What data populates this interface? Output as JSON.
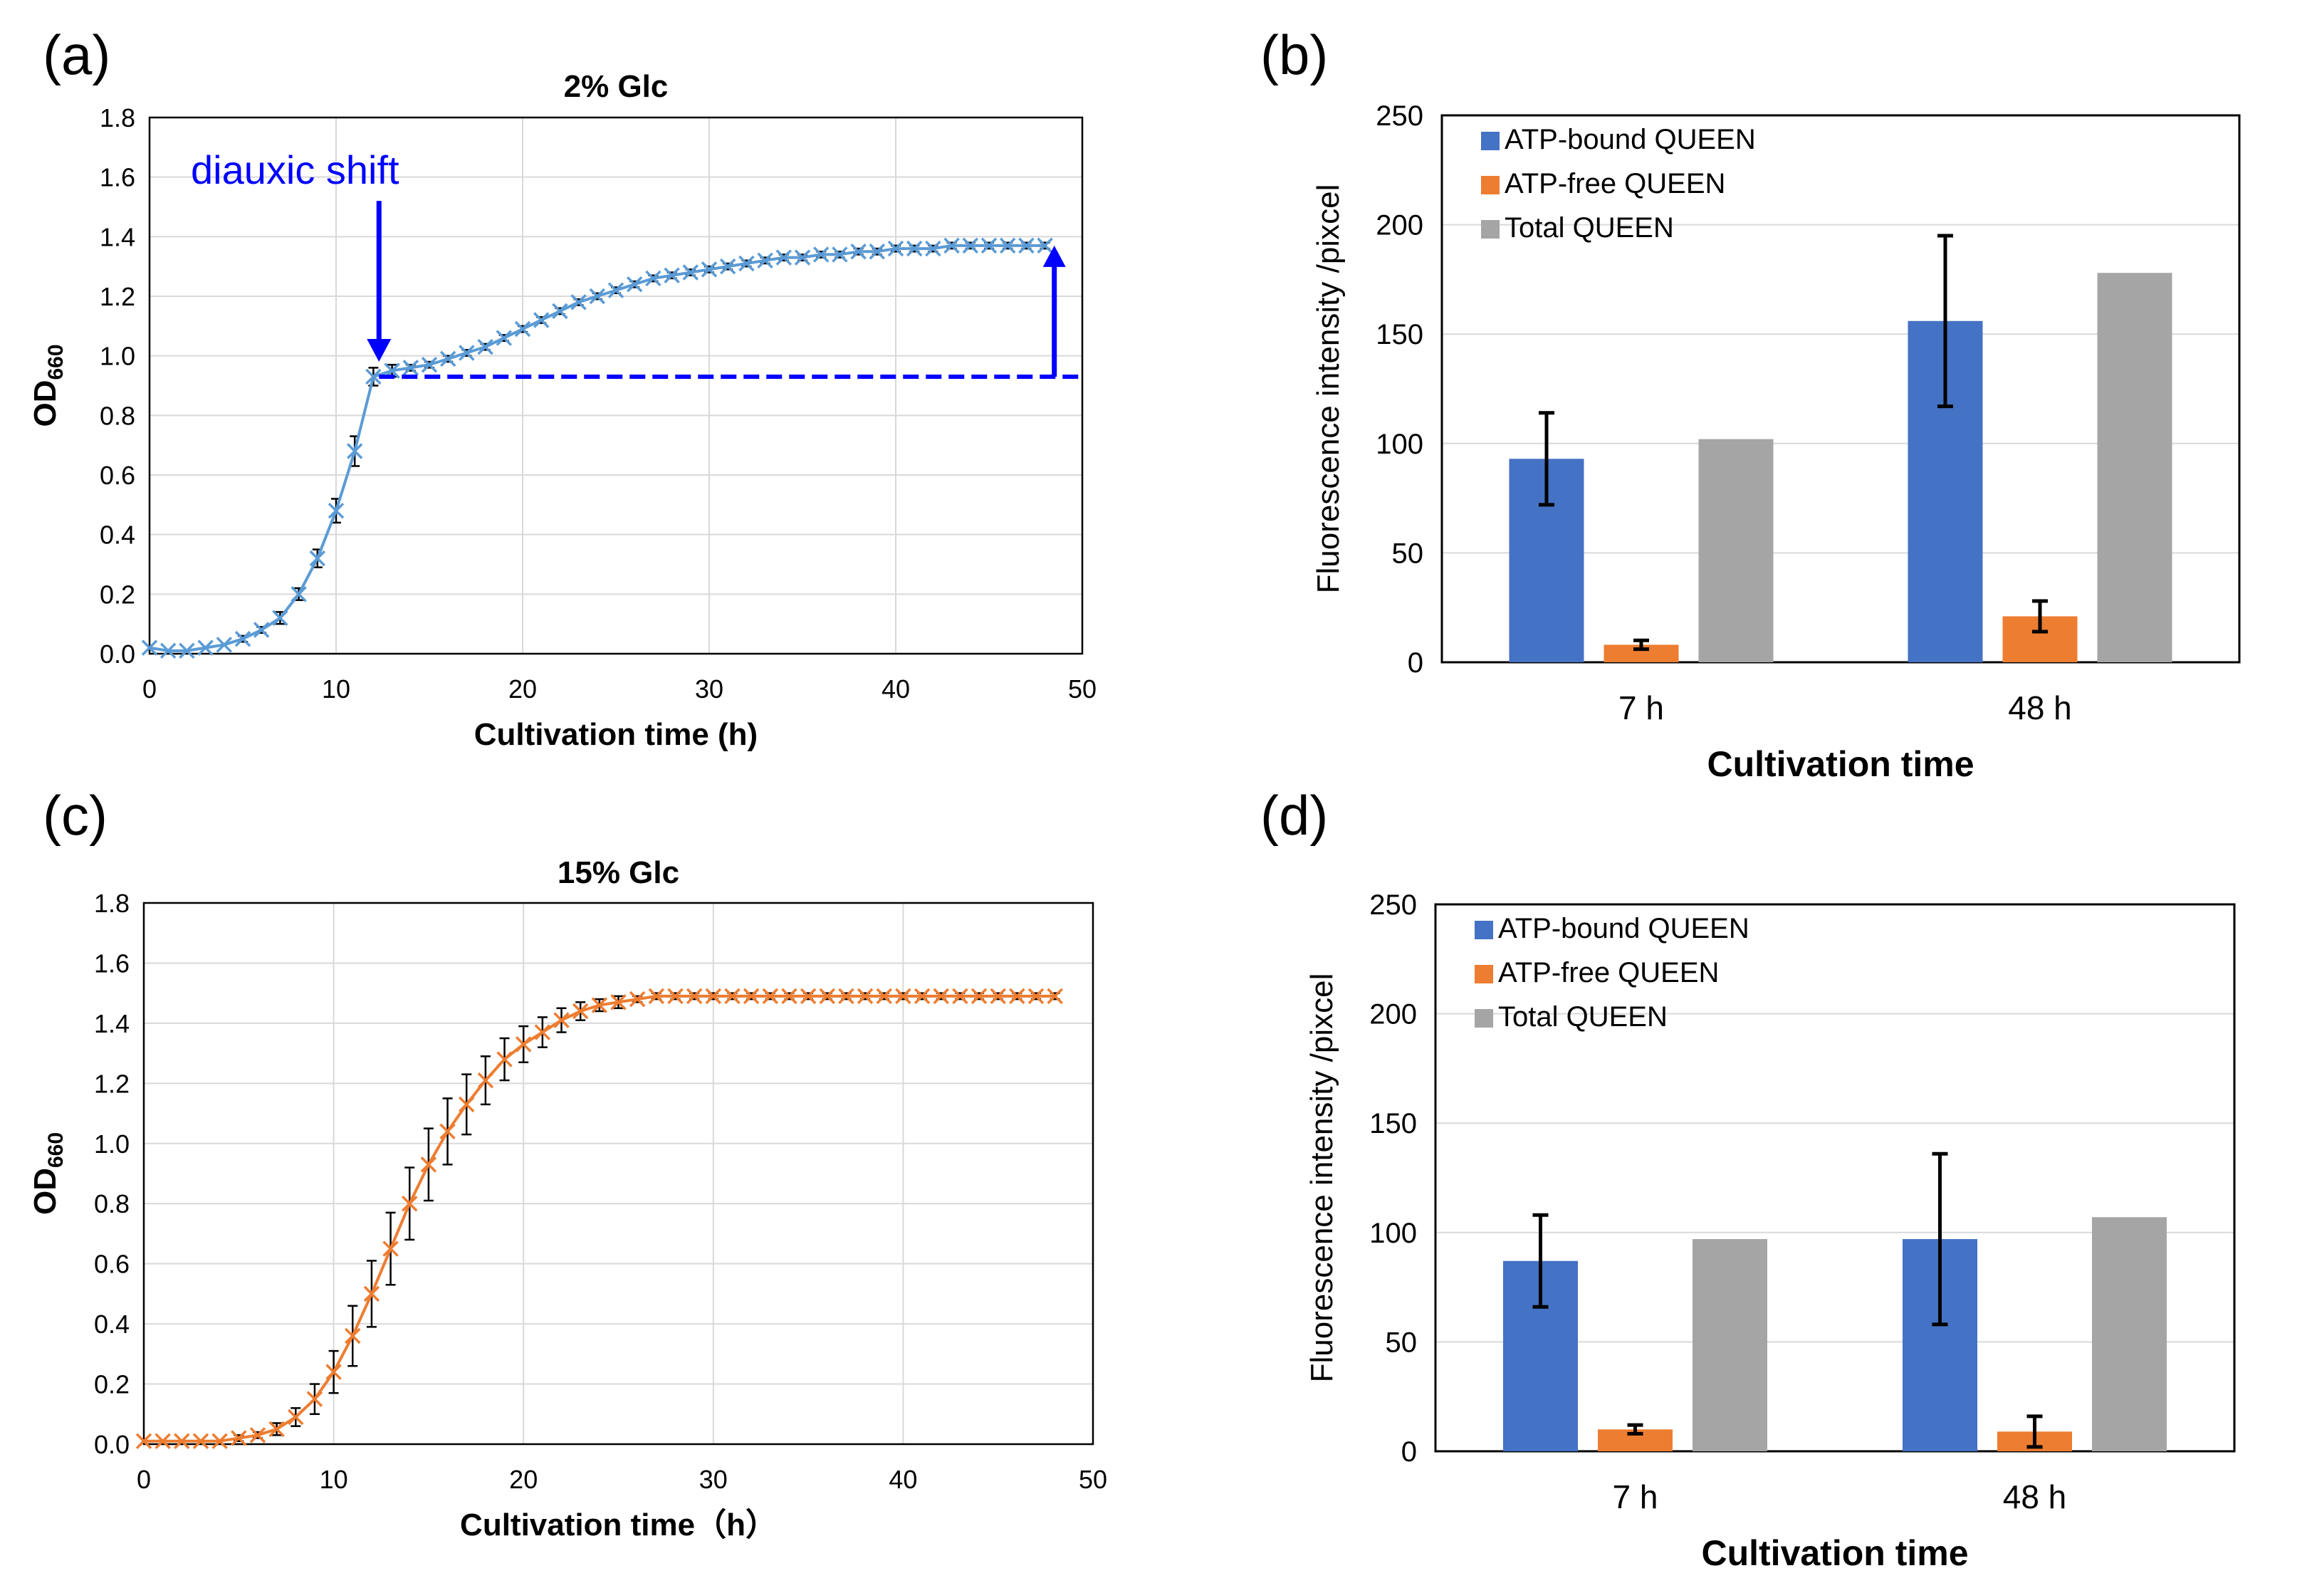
{
  "panels": {
    "a": {
      "label": "(a)"
    },
    "b": {
      "label": "(b)"
    },
    "c": {
      "label": "(c)"
    },
    "d": {
      "label": "(d)"
    }
  },
  "chart_data": [
    {
      "id": "a",
      "type": "line",
      "title": "2% Glc",
      "xlabel": "Cultivation time (h)",
      "ylabel_main": "OD",
      "ylabel_sub": "660",
      "xlim": [
        0,
        50
      ],
      "ylim": [
        0,
        1.8
      ],
      "xticks": [
        0,
        10,
        20,
        30,
        40,
        50
      ],
      "yticks": [
        "0.0",
        "0.2",
        "0.4",
        "0.6",
        "0.8",
        "1.0",
        "1.2",
        "1.4",
        "1.6",
        "1.8"
      ],
      "grid": true,
      "series_color": "#5b9bd5",
      "x": [
        0,
        1,
        2,
        3,
        4,
        5,
        6,
        7,
        8,
        9,
        10,
        11,
        12,
        13,
        14,
        15,
        16,
        17,
        18,
        19,
        20,
        21,
        22,
        23,
        24,
        25,
        26,
        27,
        28,
        29,
        30,
        31,
        32,
        33,
        34,
        35,
        36,
        37,
        38,
        39,
        40,
        41,
        42,
        43,
        44,
        45,
        46,
        47,
        48
      ],
      "y": [
        0.02,
        0.01,
        0.01,
        0.02,
        0.03,
        0.05,
        0.08,
        0.12,
        0.2,
        0.32,
        0.48,
        0.68,
        0.93,
        0.95,
        0.96,
        0.97,
        0.99,
        1.01,
        1.03,
        1.06,
        1.09,
        1.12,
        1.15,
        1.18,
        1.2,
        1.22,
        1.24,
        1.26,
        1.27,
        1.28,
        1.29,
        1.3,
        1.31,
        1.32,
        1.33,
        1.33,
        1.34,
        1.34,
        1.35,
        1.35,
        1.36,
        1.36,
        1.36,
        1.37,
        1.37,
        1.37,
        1.37,
        1.37,
        1.37
      ],
      "error": [
        0,
        0,
        0,
        0,
        0,
        0.01,
        0.01,
        0.02,
        0.02,
        0.03,
        0.04,
        0.05,
        0.03,
        0.02,
        0.01,
        0.01,
        0.01,
        0.01,
        0.01,
        0.01,
        0.01,
        0.01,
        0.01,
        0.01,
        0.01,
        0.01,
        0.01,
        0.01,
        0.01,
        0.01,
        0.01,
        0.01,
        0.01,
        0.01,
        0.01,
        0.01,
        0.01,
        0.01,
        0.01,
        0.01,
        0.01,
        0.01,
        0.01,
        0.01,
        0.01,
        0.01,
        0.01,
        0.01,
        0.01
      ],
      "annotation": {
        "text": "diauxic shift",
        "color": "#0000ff",
        "arrow_x": 12.3,
        "arrow_y_top": 1.52,
        "arrow_y_bottom": 0.98,
        "dashed_y": 0.93,
        "dashed_x_start": 12.3,
        "dashed_x_end": 50,
        "rise_x": 48.5,
        "rise_y_top": 1.37
      }
    },
    {
      "id": "b",
      "type": "bar",
      "categories": [
        "7 h",
        "48 h"
      ],
      "xlabel": "Cultivation time",
      "ylabel": "Fluorescence intensity /pixcel",
      "ylim": [
        0,
        250
      ],
      "yticks": [
        0,
        50,
        100,
        150,
        200,
        250
      ],
      "legend_position": "top-left",
      "series": [
        {
          "name": "ATP-bound QUEEN",
          "color": "#4472c4",
          "values": [
            93,
            156
          ],
          "errors": [
            21,
            39
          ]
        },
        {
          "name": "ATP-free QUEEN",
          "color": "#ed7d31",
          "values": [
            8,
            21
          ],
          "errors": [
            2,
            7
          ]
        },
        {
          "name": "Total QUEEN",
          "color": "#a5a5a5",
          "values": [
            102,
            178
          ],
          "errors": [
            null,
            null
          ]
        }
      ]
    },
    {
      "id": "c",
      "type": "line",
      "title": "15% Glc",
      "xlabel": "Cultivation time（h）",
      "ylabel_main": "OD",
      "ylabel_sub": "660",
      "xlim": [
        0,
        50
      ],
      "ylim": [
        0,
        1.8
      ],
      "xticks": [
        0,
        10,
        20,
        30,
        40,
        50
      ],
      "yticks": [
        "0.0",
        "0.2",
        "0.4",
        "0.6",
        "0.8",
        "1.0",
        "1.2",
        "1.4",
        "1.6",
        "1.8"
      ],
      "grid": true,
      "series_color": "#ed7d31",
      "x": [
        0,
        1,
        2,
        3,
        4,
        5,
        6,
        7,
        8,
        9,
        10,
        11,
        12,
        13,
        14,
        15,
        16,
        17,
        18,
        19,
        20,
        21,
        22,
        23,
        24,
        25,
        26,
        27,
        28,
        29,
        30,
        31,
        32,
        33,
        34,
        35,
        36,
        37,
        38,
        39,
        40,
        41,
        42,
        43,
        44,
        45,
        46,
        47,
        48
      ],
      "y": [
        0.01,
        0.01,
        0.01,
        0.01,
        0.01,
        0.02,
        0.03,
        0.05,
        0.09,
        0.15,
        0.24,
        0.36,
        0.5,
        0.65,
        0.8,
        0.93,
        1.04,
        1.13,
        1.21,
        1.28,
        1.33,
        1.37,
        1.41,
        1.44,
        1.46,
        1.47,
        1.48,
        1.49,
        1.49,
        1.49,
        1.49,
        1.49,
        1.49,
        1.49,
        1.49,
        1.49,
        1.49,
        1.49,
        1.49,
        1.49,
        1.49,
        1.49,
        1.49,
        1.49,
        1.49,
        1.49,
        1.49,
        1.49,
        1.49
      ],
      "error": [
        0,
        0,
        0,
        0,
        0,
        0.01,
        0.01,
        0.02,
        0.03,
        0.05,
        0.07,
        0.1,
        0.11,
        0.12,
        0.12,
        0.12,
        0.11,
        0.1,
        0.08,
        0.07,
        0.06,
        0.05,
        0.04,
        0.03,
        0.02,
        0.02,
        0.01,
        0.01,
        0.01,
        0.01,
        0.01,
        0.01,
        0.01,
        0.01,
        0.01,
        0.01,
        0.01,
        0.01,
        0.01,
        0.01,
        0.01,
        0.01,
        0.01,
        0.01,
        0.01,
        0.01,
        0.01,
        0.01,
        0.01
      ]
    },
    {
      "id": "d",
      "type": "bar",
      "categories": [
        "7 h",
        "48 h"
      ],
      "xlabel": "Cultivation time",
      "ylabel": "Fluorescence intensity /pixcel",
      "ylim": [
        0,
        250
      ],
      "yticks": [
        0,
        50,
        100,
        150,
        200,
        250
      ],
      "legend_position": "top-left",
      "series": [
        {
          "name": "ATP-bound QUEEN",
          "color": "#4472c4",
          "values": [
            87,
            97
          ],
          "errors": [
            21,
            39
          ]
        },
        {
          "name": "ATP-free QUEEN",
          "color": "#ed7d31",
          "values": [
            10,
            9
          ],
          "errors": [
            2,
            7
          ]
        },
        {
          "name": "Total QUEEN",
          "color": "#a5a5a5",
          "values": [
            97,
            107
          ],
          "errors": [
            null,
            null
          ]
        }
      ]
    }
  ]
}
